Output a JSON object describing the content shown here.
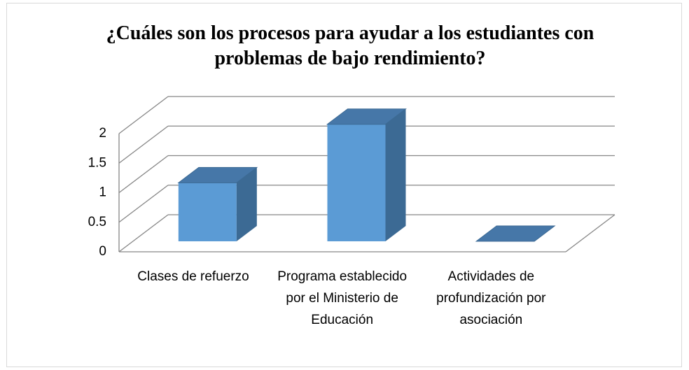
{
  "chart_data": {
    "type": "bar3d",
    "title": "¿Cuáles son los procesos para ayudar a los estudiantes con problemas de bajo rendimiento?",
    "categories": [
      "Clases de refuerzo",
      "Programa establecido por el Ministerio de Educación",
      "Actividades de profundización por asociación"
    ],
    "values": [
      1,
      2,
      0
    ],
    "color": "#5b9bd5",
    "ylim": [
      0,
      2
    ],
    "yticks": [
      0,
      0.5,
      1,
      1.5,
      2
    ],
    "grid": true
  }
}
